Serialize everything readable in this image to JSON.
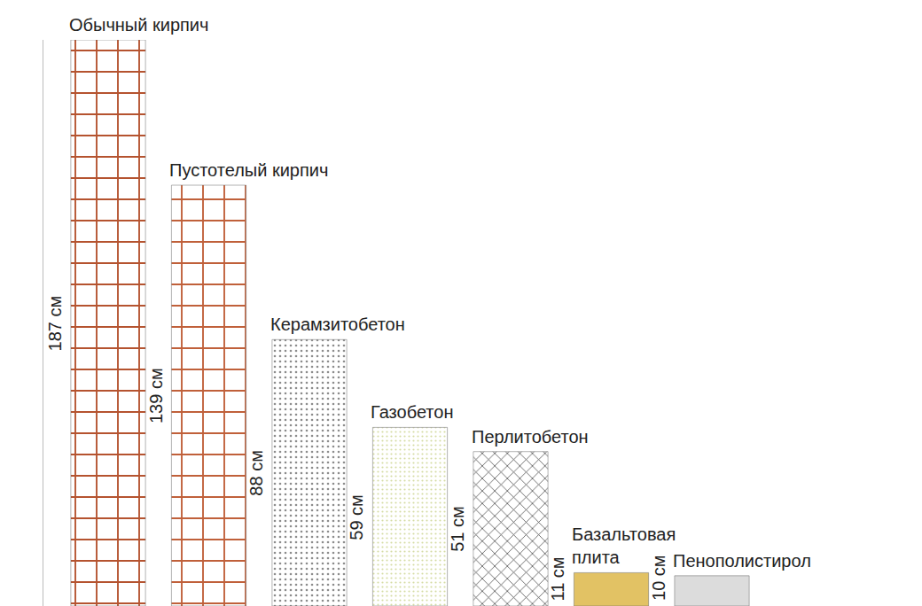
{
  "chart_data": {
    "type": "bar",
    "categories": [
      "Обычный кирпич",
      "Пустотелый кирпич",
      "Керамзитобетон",
      "Газобетон",
      "Перлитобетон",
      "Базальтовая плита",
      "Пенополистирол"
    ],
    "values": [
      187,
      139,
      88,
      59,
      51,
      11,
      10
    ],
    "value_labels": [
      "187 см",
      "139 см",
      "88 см",
      "59 см",
      "51 см",
      "11 см",
      "10 см"
    ],
    "colors": [
      "#b5532f",
      "#c0603a",
      "#8c8c8c",
      "#d4dba2",
      "#4a4a4a",
      "#e2c264",
      "#dcdcdc"
    ],
    "ylim": [
      0,
      187
    ],
    "data_labels": true,
    "tick_labels": false,
    "grid": false
  }
}
